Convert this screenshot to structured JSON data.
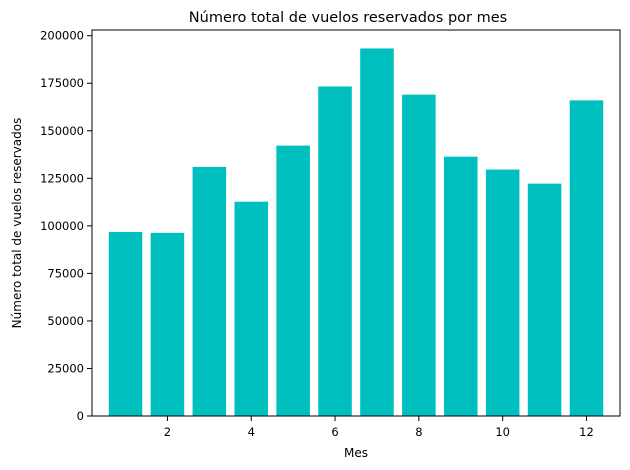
{
  "chart_data": {
    "type": "bar",
    "title": "Número total de vuelos reservados por mes",
    "xlabel": "Mes",
    "ylabel": "Número total de vuelos reservados",
    "x": [
      1,
      2,
      3,
      4,
      5,
      6,
      7,
      8,
      9,
      10,
      11,
      12
    ],
    "values": [
      96800,
      96300,
      131000,
      112700,
      142200,
      173300,
      193300,
      169000,
      136400,
      129600,
      122200,
      166000
    ],
    "bar_color": "#00BFBF",
    "xlim": [
      0.2,
      12.8
    ],
    "ylim": [
      0,
      203000
    ],
    "xticks": [
      2,
      4,
      6,
      8,
      10,
      12
    ],
    "yticks": [
      0,
      25000,
      50000,
      75000,
      100000,
      125000,
      150000,
      175000,
      200000
    ],
    "xtick_labels": [
      "2",
      "4",
      "6",
      "8",
      "10",
      "12"
    ],
    "ytick_labels": [
      "0",
      "25000",
      "50000",
      "75000",
      "100000",
      "125000",
      "150000",
      "175000",
      "200000"
    ],
    "grid": false,
    "legend": "none"
  }
}
